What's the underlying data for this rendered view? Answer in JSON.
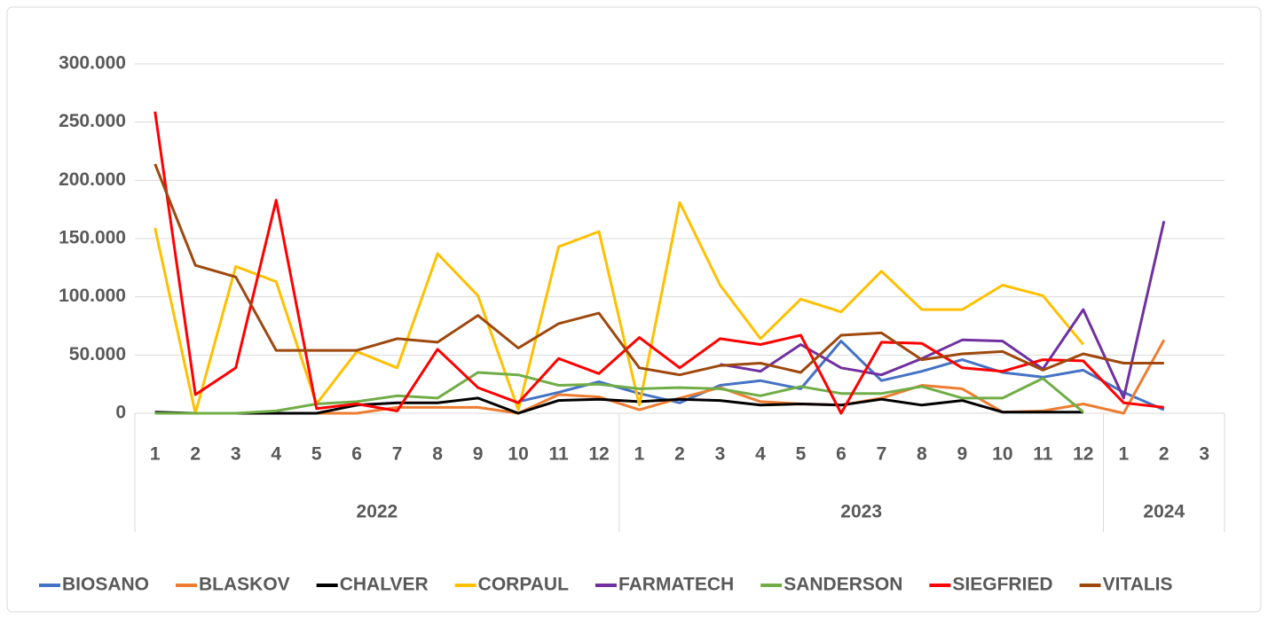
{
  "chart_data": {
    "type": "line",
    "category_groups": [
      {
        "name": "2022",
        "categories": [
          "1",
          "2",
          "3",
          "4",
          "5",
          "6",
          "7",
          "8",
          "9",
          "10",
          "11",
          "12"
        ]
      },
      {
        "name": "2023",
        "categories": [
          "1",
          "2",
          "3",
          "4",
          "5",
          "6",
          "7",
          "8",
          "9",
          "10",
          "11",
          "12"
        ]
      },
      {
        "name": "2024",
        "categories": [
          "1",
          "2",
          "3"
        ]
      }
    ],
    "ylim": [
      0,
      300000
    ],
    "yticks": [
      0,
      {
        "value": 50000,
        "label": "50.000"
      },
      {
        "value": 100000,
        "label": "100.000"
      },
      {
        "value": 150000,
        "label": "150.000"
      },
      {
        "value": 200000,
        "label": "200.000"
      },
      {
        "value": 250000,
        "label": "250.000"
      },
      {
        "value": 300000,
        "label": "300.000"
      }
    ],
    "grid": true,
    "legend": "bottom",
    "series": [
      {
        "name": "BIOSANO",
        "color": "#4472c4",
        "values": [
          null,
          null,
          null,
          null,
          null,
          null,
          null,
          null,
          null,
          10000,
          18000,
          27000,
          17000,
          9000,
          24000,
          28000,
          21000,
          62000,
          28000,
          36000,
          46000,
          35000,
          31000,
          37000,
          18000,
          3000,
          null
        ]
      },
      {
        "name": "BLASKOV",
        "color": "#ed7d31",
        "values": [
          0,
          0,
          0,
          0,
          0,
          0,
          5000,
          5000,
          5000,
          0,
          16000,
          14000,
          3000,
          13000,
          22000,
          10000,
          8000,
          7000,
          13000,
          24000,
          21000,
          1000,
          2000,
          8000,
          0,
          63000,
          null
        ]
      },
      {
        "name": "CHALVER",
        "color": "#000000",
        "values": [
          1000,
          0,
          0,
          0,
          0,
          7000,
          9000,
          9000,
          13000,
          0,
          11000,
          12000,
          10000,
          12000,
          11000,
          7000,
          8000,
          7000,
          12000,
          7000,
          11000,
          1000,
          1000,
          1000,
          null,
          null,
          null
        ]
      },
      {
        "name": "CORPAUL",
        "color": "#ffc000",
        "values": [
          159000,
          0,
          126000,
          113000,
          8000,
          53000,
          39000,
          137000,
          101000,
          3000,
          143000,
          156000,
          7000,
          181000,
          110000,
          64000,
          98000,
          87000,
          122000,
          89000,
          89000,
          110000,
          101000,
          59000,
          null,
          null,
          null
        ]
      },
      {
        "name": "FARMATECH",
        "color": "#7030a0",
        "values": [
          null,
          null,
          null,
          null,
          null,
          null,
          null,
          null,
          null,
          null,
          null,
          null,
          null,
          null,
          42000,
          36000,
          59000,
          39000,
          33000,
          47000,
          63000,
          62000,
          38000,
          89000,
          13000,
          165000,
          null
        ]
      },
      {
        "name": "SANDERSON",
        "color": "#70ad47",
        "values": [
          0,
          0,
          0,
          2000,
          8000,
          10000,
          15000,
          13000,
          35000,
          33000,
          24000,
          25000,
          21000,
          22000,
          21000,
          15000,
          23000,
          17000,
          17000,
          23000,
          13000,
          13000,
          30000,
          1000,
          null,
          null,
          null
        ]
      },
      {
        "name": "SIEGFRIED",
        "color": "#ff0000",
        "values": [
          259000,
          16000,
          39000,
          183000,
          4000,
          8000,
          2000,
          55000,
          22000,
          9000,
          47000,
          34000,
          65000,
          39000,
          64000,
          59000,
          67000,
          0,
          61000,
          60000,
          39000,
          36000,
          46000,
          45000,
          9000,
          5000,
          null
        ]
      },
      {
        "name": "VITALIS",
        "color": "#9e480e",
        "values": [
          214000,
          127000,
          117000,
          54000,
          54000,
          54000,
          64000,
          61000,
          84000,
          56000,
          77000,
          86000,
          39000,
          33000,
          41000,
          43000,
          35000,
          67000,
          69000,
          46000,
          51000,
          53000,
          37000,
          51000,
          43000,
          43000,
          null
        ]
      }
    ]
  }
}
